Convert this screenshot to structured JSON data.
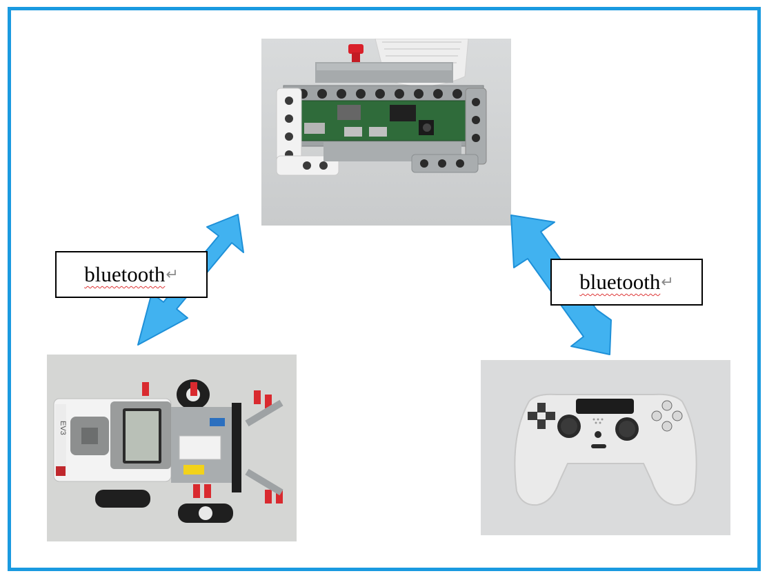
{
  "diagram": {
    "nodes": [
      {
        "id": "raspberry-pi",
        "icon": "raspberry-pi-in-lego-frame-photo"
      },
      {
        "id": "ev3-robot",
        "icon": "lego-ev3-robot-photo"
      },
      {
        "id": "gamepad",
        "icon": "white-game-controller-photo"
      }
    ],
    "edges": [
      {
        "from": "raspberry-pi",
        "to": "ev3-robot",
        "bidirectional": true,
        "label": "bluetooth"
      },
      {
        "from": "raspberry-pi",
        "to": "gamepad",
        "bidirectional": true,
        "label": "bluetooth"
      }
    ],
    "labels": {
      "left": "bluetooth",
      "right": "bluetooth",
      "return_mark": "↵"
    },
    "colors": {
      "frame": "#1a9ae0",
      "arrow": "#41b2f0",
      "arrow_outline": "#1e90d8"
    }
  }
}
